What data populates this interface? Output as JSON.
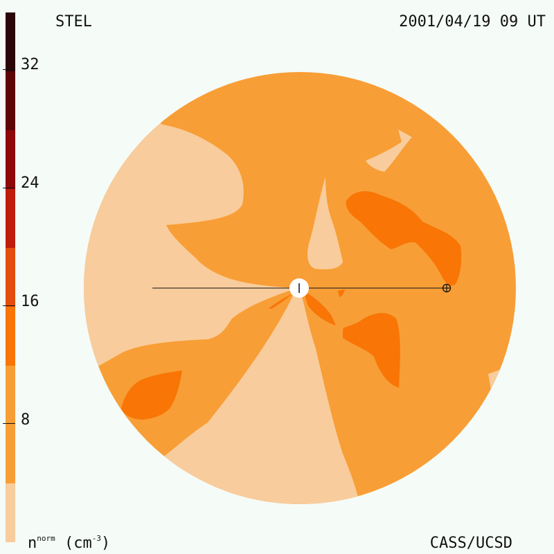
{
  "header": {
    "observatory": "STEL",
    "timestamp": "2001/04/19 09 UT"
  },
  "footer": {
    "units_base": "n",
    "units_super": "norm",
    "units_paren": "(cm",
    "units_exp": "-3",
    "units_close": ")",
    "credit": "CASS/UCSD"
  },
  "colorbar": {
    "ticks": [
      "32",
      "24",
      "16",
      "8"
    ],
    "levels": [
      {
        "from": 0,
        "to": 4,
        "color": "#f8cc9c"
      },
      {
        "from": 4,
        "to": 8,
        "color": "#f89e36"
      },
      {
        "from": 8,
        "to": 12,
        "color": "#f87506"
      },
      {
        "from": 12,
        "to": 16,
        "color": "#e44e0c"
      },
      {
        "from": 16,
        "to": 20,
        "color": "#c01c0c"
      },
      {
        "from": 20,
        "to": 24,
        "color": "#8e0808"
      },
      {
        "from": 24,
        "to": 28,
        "color": "#5c0606"
      },
      {
        "from": 28,
        "to": 32,
        "color": "#300808"
      },
      {
        "from": 32,
        "to": 36,
        "color": "#1a0604"
      }
    ]
  },
  "colors": {
    "background": "#f5fbf7",
    "low": "#f8cc9c",
    "mid": "#f89e36",
    "high": "#f87506"
  },
  "markers": {
    "sun": "sun-icon",
    "earth": "earth-icon"
  }
}
